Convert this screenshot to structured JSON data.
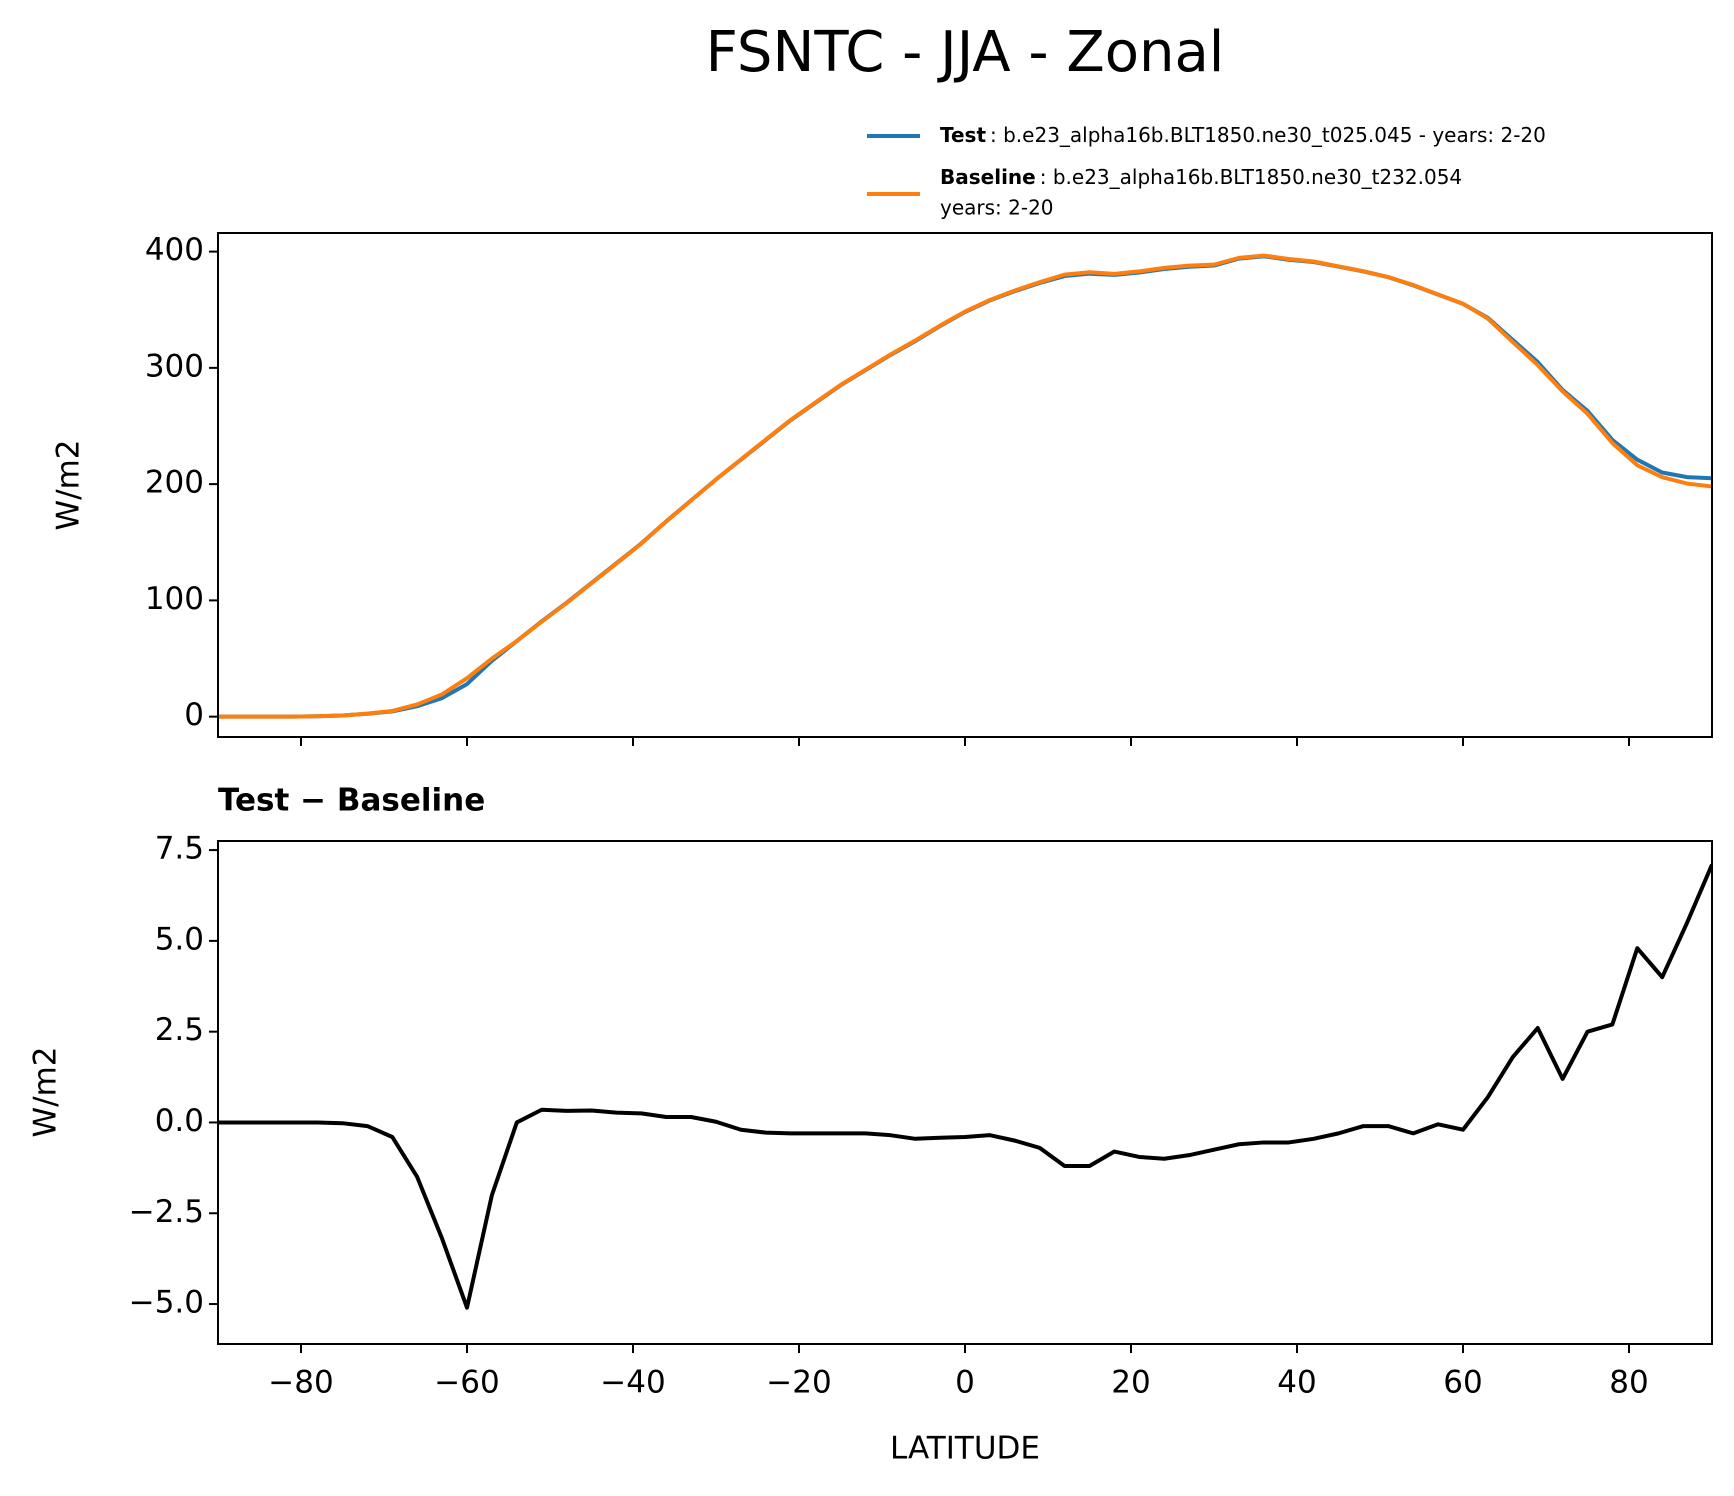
{
  "chart_data": [
    {
      "type": "line",
      "title": "FSNTC - JJA - Zonal",
      "ylabel": "W/m2",
      "x": [
        -90,
        -87,
        -84,
        -81,
        -78,
        -75,
        -72,
        -69,
        -66,
        -63,
        -60,
        -57,
        -54,
        -51,
        -48,
        -45,
        -42,
        -39,
        -36,
        -33,
        -30,
        -27,
        -24,
        -21,
        -18,
        -15,
        -12,
        -9,
        -6,
        -3,
        0,
        3,
        6,
        9,
        12,
        15,
        18,
        21,
        24,
        27,
        30,
        33,
        36,
        39,
        42,
        45,
        48,
        51,
        54,
        57,
        60,
        63,
        66,
        69,
        72,
        75,
        78,
        81,
        84,
        87,
        90
      ],
      "series": [
        {
          "name": "Test",
          "description": [
            ": b.e23_alpha16b.BLT1850.ne30_t025.045 - years: 2-20"
          ],
          "color": "#1f77b4",
          "values": [
            0,
            0,
            0,
            0,
            0.3,
            1,
            2.5,
            4.5,
            9,
            16,
            28,
            48,
            65,
            82,
            98,
            115,
            132,
            149,
            168,
            186,
            204,
            221,
            238,
            255,
            270,
            285,
            298,
            311,
            323,
            336,
            348,
            358,
            366,
            373,
            379,
            381,
            380,
            382,
            385,
            387,
            388,
            394,
            396,
            393,
            391,
            387,
            383,
            378,
            371,
            363,
            355,
            343,
            324,
            305,
            281,
            263,
            238,
            221,
            210,
            206,
            205
          ]
        },
        {
          "name": "Baseline",
          "description": [
            ": b.e23_alpha16b.BLT1850.ne30_t232.054",
            "years: 2-20"
          ],
          "color": "#ff7f0e",
          "values": [
            0,
            0,
            0,
            0,
            0.3,
            1,
            2.6,
            4.9,
            10.5,
            19.2,
            33.1,
            50,
            65,
            81.7,
            97.7,
            114.7,
            131.7,
            148.8,
            167.9,
            185.9,
            204,
            221.2,
            238.3,
            255.3,
            270.3,
            285.3,
            298.3,
            311.4,
            323.5,
            336.4,
            348.4,
            358.4,
            366.5,
            373.7,
            380.2,
            382.2,
            380.8,
            383,
            386,
            387.9,
            388.8,
            394.6,
            396.6,
            393.6,
            391.5,
            387.3,
            383.1,
            378.1,
            371.3,
            363.1,
            355.2,
            342.3,
            322.2,
            302.4,
            279.8,
            260.5,
            235.3,
            216.2,
            206,
            200.5,
            197.9
          ]
        }
      ],
      "xlim": [
        -90,
        90
      ],
      "xticks": [
        -80,
        -60,
        -40,
        -20,
        0,
        20,
        40,
        60,
        80
      ],
      "ylim": [
        -17.5,
        416
      ],
      "yticks": [
        0,
        100,
        200,
        300,
        400
      ]
    },
    {
      "type": "line",
      "title": "Test − Baseline",
      "ylabel": "W/m2",
      "xlabel": "LATITUDE",
      "x": [
        -90,
        -87,
        -84,
        -81,
        -78,
        -75,
        -72,
        -69,
        -66,
        -63,
        -60,
        -57,
        -54,
        -51,
        -48,
        -45,
        -42,
        -39,
        -36,
        -33,
        -30,
        -27,
        -24,
        -21,
        -18,
        -15,
        -12,
        -9,
        -6,
        -3,
        0,
        3,
        6,
        9,
        12,
        15,
        18,
        21,
        24,
        27,
        30,
        33,
        36,
        39,
        42,
        45,
        48,
        51,
        54,
        57,
        60,
        63,
        66,
        69,
        72,
        75,
        78,
        81,
        84,
        87,
        90
      ],
      "series": [
        {
          "color": "#000000",
          "values": [
            0,
            0,
            0,
            0,
            0,
            -0.02,
            -0.1,
            -0.4,
            -1.5,
            -3.2,
            -5.1,
            -2,
            0,
            0.35,
            0.32,
            0.33,
            0.27,
            0.25,
            0.15,
            0.15,
            0.02,
            -0.2,
            -0.28,
            -0.3,
            -0.3,
            -0.3,
            -0.3,
            -0.35,
            -0.45,
            -0.42,
            -0.4,
            -0.35,
            -0.5,
            -0.7,
            -1.2,
            -1.2,
            -0.8,
            -0.95,
            -1,
            -0.9,
            -0.75,
            -0.6,
            -0.55,
            -0.55,
            -0.45,
            -0.3,
            -0.1,
            -0.1,
            -0.3,
            -0.05,
            -0.2,
            0.7,
            1.8,
            2.6,
            1.2,
            2.5,
            2.7,
            4.8,
            4,
            5.5,
            7.1
          ]
        }
      ],
      "xlim": [
        -90,
        90
      ],
      "xticks": [
        {
          "value": -80,
          "label": "−80"
        },
        {
          "value": -60,
          "label": "−60"
        },
        {
          "value": -40,
          "label": "−40"
        },
        {
          "value": -20,
          "label": "−20"
        },
        0,
        20,
        40,
        60,
        80
      ],
      "ylim": [
        -6.1,
        7.75
      ],
      "yticks": [
        {
          "value": -5,
          "label": "−5.0"
        },
        {
          "value": -2.5,
          "label": "−2.5"
        },
        {
          "value": 0,
          "label": "0.0"
        },
        2.5,
        {
          "value": 5,
          "label": "5.0"
        },
        7.5
      ]
    }
  ]
}
